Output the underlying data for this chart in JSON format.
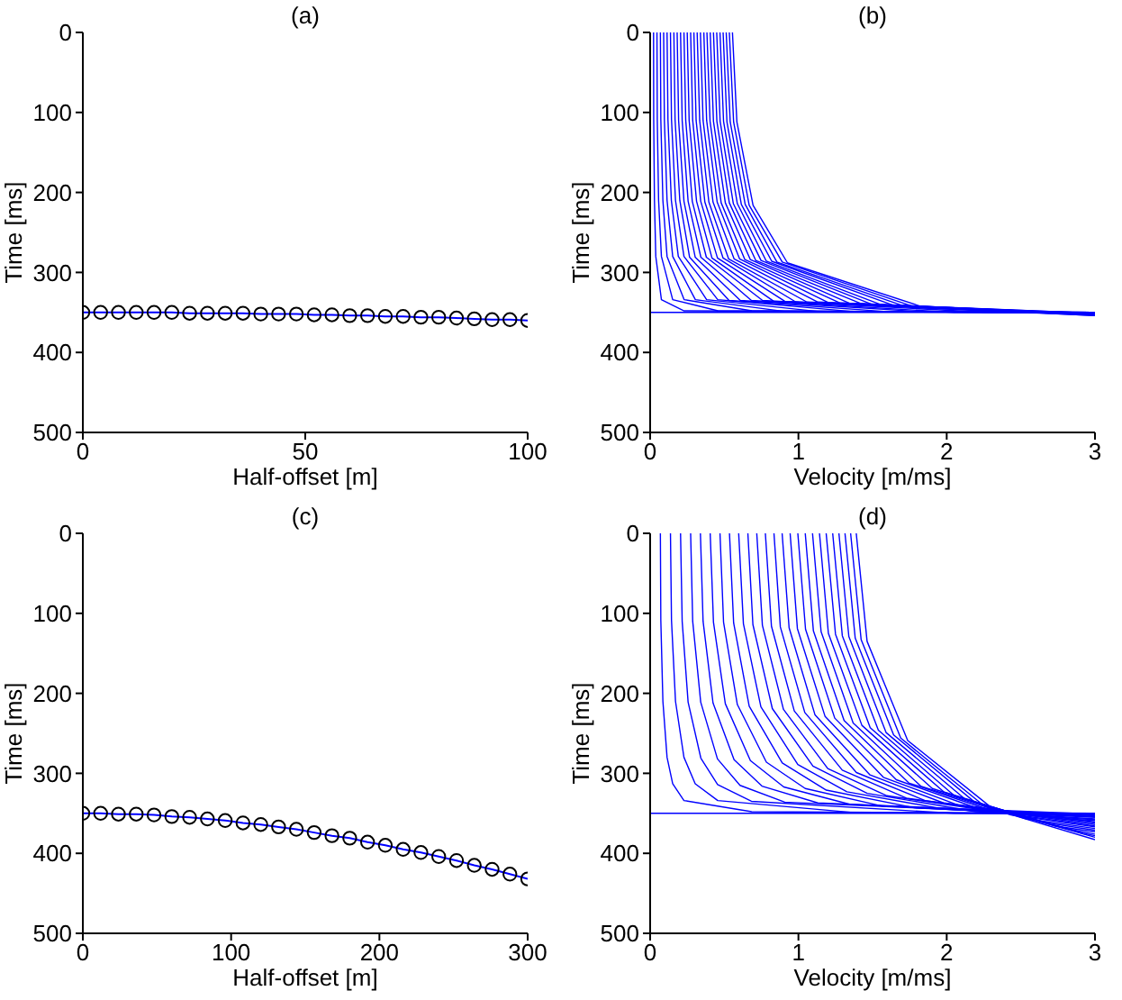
{
  "chart_data": [
    {
      "type": "line",
      "title": "(a)",
      "xlabel": "Half-offset [m]",
      "ylabel": "Time [ms]",
      "xlim": [
        0,
        100
      ],
      "xticks": [
        0,
        50,
        100
      ],
      "ylim": [
        500,
        0
      ],
      "yticks": [
        0,
        100,
        200,
        300,
        400,
        500
      ],
      "series": [
        {
          "type": "scatter",
          "marker": "circle",
          "color": "#000000",
          "x": [
            0,
            4,
            8,
            12,
            16,
            20,
            24,
            28,
            32,
            36,
            40,
            44,
            48,
            52,
            56,
            60,
            64,
            68,
            72,
            76,
            80,
            84,
            88,
            92,
            96,
            100
          ],
          "values": [
            350,
            350,
            350,
            350,
            350,
            350,
            351,
            351,
            351,
            351,
            352,
            352,
            352,
            353,
            353,
            354,
            354,
            355,
            355,
            356,
            356,
            357,
            358,
            359,
            359,
            360
          ]
        },
        {
          "color": "#0000ff",
          "x": [
            0,
            4,
            8,
            12,
            16,
            20,
            24,
            28,
            32,
            36,
            40,
            44,
            48,
            52,
            56,
            60,
            64,
            68,
            72,
            76,
            80,
            84,
            88,
            92,
            96,
            100
          ],
          "values": [
            350,
            350,
            350,
            350,
            350,
            350,
            351,
            351,
            351,
            351,
            352,
            352,
            352,
            353,
            353,
            354,
            354,
            355,
            355,
            356,
            356,
            357,
            358,
            359,
            359,
            360
          ]
        }
      ]
    },
    {
      "type": "line",
      "title": "(b)",
      "xlabel": "Velocity [m/ms]",
      "ylabel": "Time [ms]",
      "xlim": [
        0,
        3
      ],
      "xticks": [
        0,
        1,
        2,
        3
      ],
      "ylim": [
        500,
        0
      ],
      "yticks": [
        0,
        100,
        200,
        300,
        400,
        500
      ],
      "color": "#0000ff",
      "series": [
        {
          "x": [
            0,
            3
          ],
          "values": [
            350,
            350
          ]
        },
        {
          "x": [
            0.023,
            0.024,
            0.029,
            0.038,
            0.076,
            0.229,
            3
          ],
          "values": [
            0,
            109,
            210,
            280,
            334,
            348,
            350
          ]
        },
        {
          "x": [
            0.046,
            0.048,
            0.057,
            0.076,
            0.152,
            0.457,
            3
          ],
          "values": [
            0,
            109,
            210,
            280,
            334,
            348,
            350
          ]
        },
        {
          "x": [
            0.069,
            0.072,
            0.086,
            0.114,
            0.229,
            0.686,
            3
          ],
          "values": [
            0,
            109,
            210,
            280,
            334,
            348,
            350
          ]
        },
        {
          "x": [
            0.091,
            0.096,
            0.114,
            0.152,
            0.305,
            0.914,
            3
          ],
          "values": [
            0,
            109,
            210,
            280,
            334,
            349,
            350
          ]
        },
        {
          "x": [
            0.114,
            0.12,
            0.143,
            0.19,
            0.381,
            1.142,
            3
          ],
          "values": [
            0,
            109,
            210,
            280,
            334,
            349,
            350
          ]
        },
        {
          "x": [
            0.137,
            0.144,
            0.171,
            0.228,
            0.456,
            1.369,
            3
          ],
          "values": [
            0,
            109,
            210,
            280,
            334,
            349,
            350
          ]
        },
        {
          "x": [
            0.16,
            0.168,
            0.2,
            0.266,
            0.532,
            1.596,
            3
          ],
          "values": [
            0,
            109,
            210,
            281,
            335,
            349,
            350
          ]
        },
        {
          "x": [
            0.182,
            0.192,
            0.228,
            0.304,
            0.608,
            1.823,
            3
          ],
          "values": [
            0,
            110,
            211,
            281,
            335,
            349,
            350
          ]
        },
        {
          "x": [
            0.205,
            0.216,
            0.256,
            0.342,
            0.683,
            2.05,
            3
          ],
          "values": [
            0,
            110,
            211,
            281,
            335,
            350,
            351
          ]
        },
        {
          "x": [
            0.228,
            0.24,
            0.284,
            0.379,
            0.758,
            2.275,
            3
          ],
          "values": [
            0,
            110,
            211,
            281,
            335,
            350,
            351
          ]
        },
        {
          "x": [
            0.25,
            0.263,
            0.313,
            0.417,
            0.833,
            2.5,
            3
          ],
          "values": [
            0,
            110,
            211,
            282,
            336,
            350,
            351
          ]
        },
        {
          "x": [
            0.273,
            0.287,
            0.341,
            0.454,
            0.908,
            2.725,
            3
          ],
          "values": [
            0,
            110,
            211,
            282,
            336,
            351,
            351
          ]
        },
        {
          "x": [
            0.295,
            0.31,
            0.369,
            0.492,
            0.983,
            2.949,
            3
          ],
          "values": [
            0,
            110,
            212,
            282,
            337,
            351,
            351
          ]
        },
        {
          "x": [
            0.317,
            0.334,
            0.396,
            0.529,
            1.057,
            3
          ],
          "values": [
            0,
            110,
            212,
            283,
            337,
            351
          ]
        },
        {
          "x": [
            0.339,
            0.357,
            0.424,
            0.566,
            1.131,
            3
          ],
          "values": [
            0,
            110,
            212,
            283,
            337,
            351
          ]
        },
        {
          "x": [
            0.362,
            0.381,
            0.452,
            0.603,
            1.205,
            3
          ],
          "values": [
            0,
            110,
            212,
            283,
            338,
            352
          ]
        },
        {
          "x": [
            0.383,
            0.404,
            0.479,
            0.639,
            1.278,
            3
          ],
          "values": [
            0,
            111,
            213,
            284,
            338,
            352
          ]
        },
        {
          "x": [
            0.405,
            0.427,
            0.507,
            0.676,
            1.351,
            3
          ],
          "values": [
            0,
            111,
            213,
            284,
            339,
            352
          ]
        },
        {
          "x": [
            0.427,
            0.45,
            0.534,
            0.712,
            1.424,
            3
          ],
          "values": [
            0,
            111,
            213,
            285,
            339,
            352
          ]
        },
        {
          "x": [
            0.449,
            0.472,
            0.561,
            0.748,
            1.496,
            3
          ],
          "values": [
            0,
            111,
            214,
            285,
            340,
            353
          ]
        },
        {
          "x": [
            0.471,
            0.495,
            0.588,
            0.784,
            1.568,
            3
          ],
          "values": [
            0,
            111,
            214,
            286,
            341,
            353
          ]
        },
        {
          "x": [
            0.492,
            0.518,
            0.615,
            0.82,
            1.64,
            3
          ],
          "values": [
            0,
            112,
            215,
            286,
            341,
            353
          ]
        },
        {
          "x": [
            0.513,
            0.54,
            0.641,
            0.855,
            1.71,
            3
          ],
          "values": [
            0,
            112,
            215,
            287,
            342,
            353
          ]
        },
        {
          "x": [
            0.534,
            0.563,
            0.668,
            0.891,
            1.781,
            3
          ],
          "values": [
            0,
            112,
            216,
            287,
            343,
            354
          ]
        },
        {
          "x": [
            0.555,
            0.585,
            0.694,
            0.926,
            1.851,
            3
          ],
          "values": [
            0,
            112,
            216,
            288,
            344,
            354
          ]
        }
      ]
    },
    {
      "type": "line",
      "title": "(c)",
      "xlabel": "Half-offset [m]",
      "ylabel": "Time [ms]",
      "xlim": [
        0,
        300
      ],
      "xticks": [
        0,
        100,
        200,
        300
      ],
      "ylim": [
        500,
        0
      ],
      "yticks": [
        0,
        100,
        200,
        300,
        400,
        500
      ],
      "series": [
        {
          "type": "scatter",
          "marker": "circle",
          "color": "#000000",
          "x": [
            0,
            12,
            24,
            36,
            48,
            60,
            72,
            84,
            96,
            108,
            120,
            132,
            144,
            156,
            168,
            180,
            192,
            204,
            216,
            228,
            240,
            252,
            264,
            276,
            288,
            300
          ],
          "values": [
            350,
            350,
            351,
            351,
            352,
            354,
            355,
            357,
            359,
            362,
            364,
            367,
            370,
            374,
            378,
            381,
            386,
            390,
            395,
            399,
            404,
            409,
            415,
            420,
            426,
            432
          ]
        },
        {
          "color": "#0000ff",
          "x": [
            0,
            12,
            24,
            36,
            48,
            60,
            72,
            84,
            96,
            108,
            120,
            132,
            144,
            156,
            168,
            180,
            192,
            204,
            216,
            228,
            240,
            252,
            264,
            276,
            288,
            300
          ],
          "values": [
            350,
            350,
            351,
            351,
            352,
            354,
            355,
            357,
            359,
            362,
            364,
            367,
            370,
            374,
            378,
            381,
            386,
            390,
            395,
            399,
            404,
            409,
            415,
            420,
            426,
            432
          ]
        }
      ]
    },
    {
      "type": "line",
      "title": "(d)",
      "xlabel": "Velocity [m/ms]",
      "ylabel": "Time [ms]",
      "xlim": [
        0,
        3
      ],
      "xticks": [
        0,
        1,
        2,
        3
      ],
      "ylim": [
        500,
        0
      ],
      "yticks": [
        0,
        100,
        200,
        300,
        400,
        500
      ],
      "color": "#0000ff",
      "series": [
        {
          "x": [
            0,
            3
          ],
          "values": [
            350,
            350
          ]
        },
        {
          "x": [
            0.069,
            0.072,
            0.086,
            0.114,
            0.152,
            0.228,
            0.685,
            3
          ],
          "values": [
            0,
            109,
            210,
            280,
            313,
            334,
            348,
            350
          ]
        },
        {
          "x": [
            0.137,
            0.144,
            0.171,
            0.228,
            0.304,
            0.456,
            1.369,
            3
          ],
          "values": [
            0,
            109,
            210,
            280,
            313,
            334,
            349,
            350
          ]
        },
        {
          "x": [
            0.205,
            0.216,
            0.256,
            0.342,
            0.455,
            0.683,
            2.049,
            3
          ],
          "values": [
            0,
            110,
            211,
            281,
            314,
            335,
            350,
            351
          ]
        },
        {
          "x": [
            0.273,
            0.287,
            0.341,
            0.454,
            0.606,
            0.908,
            2.725,
            3
          ],
          "values": [
            0,
            110,
            211,
            282,
            315,
            336,
            351,
            351
          ]
        },
        {
          "x": [
            0.339,
            0.357,
            0.424,
            0.566,
            0.754,
            1.131,
            3
          ],
          "values": [
            0,
            110,
            212,
            283,
            316,
            337,
            351
          ]
        },
        {
          "x": [
            0.405,
            0.427,
            0.507,
            0.676,
            0.901,
            1.351,
            3
          ],
          "values": [
            0,
            111,
            213,
            284,
            317,
            339,
            352
          ]
        },
        {
          "x": [
            0.471,
            0.495,
            0.588,
            0.784,
            1.046,
            1.568,
            3
          ],
          "values": [
            0,
            111,
            214,
            286,
            319,
            341,
            353
          ]
        },
        {
          "x": [
            0.535,
            0.563,
            0.668,
            0.891,
            1.188,
            1.782,
            3
          ],
          "values": [
            0,
            112,
            216,
            287,
            321,
            343,
            354
          ]
        },
        {
          "x": [
            0.597,
            0.629,
            0.747,
            0.996,
            1.327,
            1.991,
            3
          ],
          "values": [
            0,
            113,
            217,
            289,
            323,
            345,
            354
          ]
        },
        {
          "x": [
            0.659,
            0.693,
            0.824,
            1.098,
            1.464,
            2.196,
            3
          ],
          "values": [
            0,
            114,
            219,
            291,
            325,
            348,
            355
          ]
        },
        {
          "x": [
            0.719,
            0.757,
            0.899,
            1.198,
            1.597,
            2.396,
            3
          ],
          "values": [
            0,
            115,
            220,
            294,
            328,
            350,
            357
          ]
        },
        {
          "x": [
            0.777,
            0.818,
            0.972,
            1.296,
            1.728,
            2.591,
            3
          ],
          "values": [
            0,
            116,
            222,
            296,
            331,
            353,
            358
          ]
        },
        {
          "x": [
            0.835,
            0.878,
            1.043,
            1.391,
            1.854,
            2.782,
            3
          ],
          "values": [
            0,
            117,
            224,
            299,
            334,
            357,
            359
          ]
        },
        {
          "x": [
            0.89,
            0.937,
            1.112,
            1.483,
            1.978,
            2.966,
            3
          ],
          "values": [
            0,
            118,
            227,
            302,
            337,
            360,
            361
          ]
        },
        {
          "x": [
            0.944,
            0.993,
            1.18,
            1.573,
            2.097,
            3
          ],
          "values": [
            0,
            119,
            229,
            305,
            341,
            362
          ]
        },
        {
          "x": [
            0.996,
            1.048,
            1.245,
            1.66,
            2.213,
            3
          ],
          "values": [
            0,
            120,
            231,
            308,
            344,
            364
          ]
        },
        {
          "x": [
            1.046,
            1.101,
            1.308,
            1.744,
            2.325,
            3
          ],
          "values": [
            0,
            122,
            234,
            312,
            348,
            366
          ]
        },
        {
          "x": [
            1.095,
            1.153,
            1.369,
            1.825,
            2.433,
            3
          ],
          "values": [
            0,
            123,
            237,
            316,
            352,
            367
          ]
        },
        {
          "x": [
            1.142,
            1.202,
            1.428,
            1.903,
            2.538,
            3
          ],
          "values": [
            0,
            125,
            240,
            319,
            357,
            369
          ]
        },
        {
          "x": [
            1.187,
            1.25,
            1.484,
            1.979,
            2.639,
            3
          ],
          "values": [
            0,
            126,
            243,
            323,
            361,
            371
          ]
        },
        {
          "x": [
            1.231,
            1.296,
            1.539,
            2.052,
            2.736,
            3
          ],
          "values": [
            0,
            128,
            246,
            328,
            366,
            373
          ]
        },
        {
          "x": [
            1.273,
            1.34,
            1.591,
            2.122,
            2.829,
            3
          ],
          "values": [
            0,
            129,
            249,
            332,
            370,
            376
          ]
        },
        {
          "x": [
            1.314,
            1.383,
            1.642,
            2.189,
            2.919,
            3
          ],
          "values": [
            0,
            131,
            252,
            336,
            375,
            378
          ]
        },
        {
          "x": [
            1.352,
            1.423,
            1.69,
            2.254,
            3
          ],
          "values": [
            0,
            133,
            256,
            341,
            380
          ]
        },
        {
          "x": [
            1.39,
            1.463,
            1.737,
            2.316,
            3
          ],
          "values": [
            0,
            135,
            259,
            345,
            383
          ]
        }
      ]
    }
  ]
}
